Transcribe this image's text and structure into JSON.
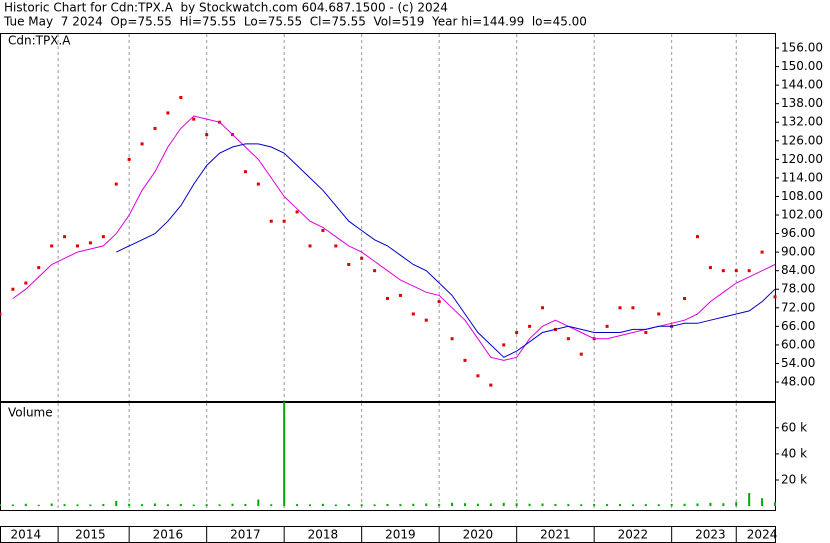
{
  "chart_data": {
    "type": "stock",
    "title": "Historic Chart for Cdn:TPX.A  by Stockwatch.com 604.687.1500 - (c) 2024",
    "subtitle": "Tue May  7 2024  Op=75.55  Hi=75.55  Lo=75.55  Cl=75.55  Vol=519  Year hi=144.99  lo=45.00",
    "price_label": "Cdn:TPX.A",
    "volume_label": "Volume",
    "categories": [
      null,
      null,
      "2014",
      null,
      null,
      null,
      null,
      "2015",
      null,
      null,
      null,
      null,
      null,
      "2016",
      null,
      null,
      null,
      null,
      null,
      "2017",
      null,
      null,
      null,
      null,
      null,
      "2018",
      null,
      null,
      null,
      null,
      null,
      "2019",
      null,
      null,
      null,
      null,
      null,
      "2020",
      null,
      null,
      null,
      null,
      null,
      "2021",
      null,
      null,
      null,
      null,
      null,
      "2022",
      null,
      null,
      null,
      null,
      null,
      "2023",
      null,
      null,
      null,
      "2024",
      null
    ],
    "ylim": [
      41.86,
      160.53
    ],
    "yticks": [
      {
        "value": 48,
        "label": "48.00"
      },
      {
        "value": 54,
        "label": "54.00"
      },
      {
        "value": 60,
        "label": "60.00"
      },
      {
        "value": 66,
        "label": "66.00"
      },
      {
        "value": 72,
        "label": "72.00"
      },
      {
        "value": 78,
        "label": "78.00"
      },
      {
        "value": 84,
        "label": "84.00"
      },
      {
        "value": 90,
        "label": "90.00"
      },
      {
        "value": 96,
        "label": "96.00"
      },
      {
        "value": 102,
        "label": "102.00"
      },
      {
        "value": 108,
        "label": "108.00"
      },
      {
        "value": 114,
        "label": "114.00"
      },
      {
        "value": 120,
        "label": "120.00"
      },
      {
        "value": 126,
        "label": "126.00"
      },
      {
        "value": 132,
        "label": "132.00"
      },
      {
        "value": 138,
        "label": "138.00"
      },
      {
        "value": 144,
        "label": "144.00"
      },
      {
        "value": 150,
        "label": "150.00"
      },
      {
        "value": 156,
        "label": "156.00"
      }
    ],
    "series": [
      {
        "name": "Close",
        "color": "#dd0000",
        "style": "dots",
        "values": [
          70,
          78,
          80,
          85,
          92,
          95,
          92,
          93,
          95,
          112,
          120,
          125,
          130,
          135,
          140,
          133,
          128,
          132,
          128,
          116,
          112,
          100,
          100,
          103,
          92,
          97,
          92,
          86,
          88,
          84,
          75,
          76,
          70,
          68,
          74,
          62,
          55,
          50,
          47,
          60,
          64,
          66,
          72,
          65,
          62,
          57,
          62,
          66,
          72,
          72,
          64,
          70,
          66,
          75,
          95,
          85,
          84,
          84,
          84,
          90,
          75.55
        ]
      },
      {
        "name": "Fast MA",
        "color": "#dd00dd",
        "style": "line",
        "values": [
          null,
          75,
          78,
          82,
          86,
          88,
          90,
          91,
          92,
          96,
          102,
          110,
          116,
          124,
          130,
          134,
          133,
          132,
          128,
          124,
          120,
          114,
          108,
          104,
          100,
          98,
          95,
          92,
          90,
          87,
          84,
          81,
          79,
          77,
          76,
          72,
          68,
          62,
          56,
          55,
          56,
          62,
          66,
          68,
          66,
          64,
          62,
          62,
          63,
          64,
          65,
          66,
          67,
          68,
          70,
          74,
          77,
          80,
          82,
          84,
          86
        ]
      },
      {
        "name": "Slow MA",
        "color": "#0000cc",
        "style": "line",
        "values": [
          null,
          null,
          null,
          null,
          null,
          null,
          null,
          null,
          null,
          90,
          92,
          94,
          96,
          100,
          105,
          112,
          118,
          122,
          124,
          125,
          125,
          124,
          122,
          118,
          114,
          110,
          105,
          100,
          97,
          94,
          92,
          89,
          86,
          84,
          80,
          76,
          70,
          64,
          60,
          56,
          58,
          61,
          64,
          65,
          66,
          65,
          64,
          64,
          64,
          65,
          65,
          66,
          66,
          67,
          67,
          68,
          69,
          70,
          71,
          74,
          78
        ]
      }
    ],
    "volume": {
      "name": "Volume",
      "color": "#00aa00",
      "values": [
        1500,
        1200,
        1800,
        1000,
        2000,
        1500,
        1300,
        1200,
        1600,
        4000,
        1800,
        1500,
        2000,
        1400,
        1600,
        1200,
        1500,
        1300,
        1800,
        1600,
        5000,
        1400,
        80000,
        1500,
        1300,
        1700,
        1200,
        1500,
        1400,
        1300,
        1600,
        1500,
        1800,
        2000,
        1700,
        2500,
        2200,
        1800,
        2000,
        2500,
        2200,
        1800,
        2000,
        1600,
        1500,
        1400,
        1700,
        1500,
        1600,
        1300,
        1500,
        1400,
        1600,
        1800,
        2000,
        2500,
        2200,
        3000,
        10000,
        6000,
        3000
      ],
      "y2lim": [
        -3000,
        79000
      ],
      "y2ticks": [
        {
          "value": 20000,
          "label": "20 k"
        },
        {
          "value": 40000,
          "label": "40 k"
        },
        {
          "value": 60000,
          "label": "60 k"
        }
      ]
    }
  }
}
